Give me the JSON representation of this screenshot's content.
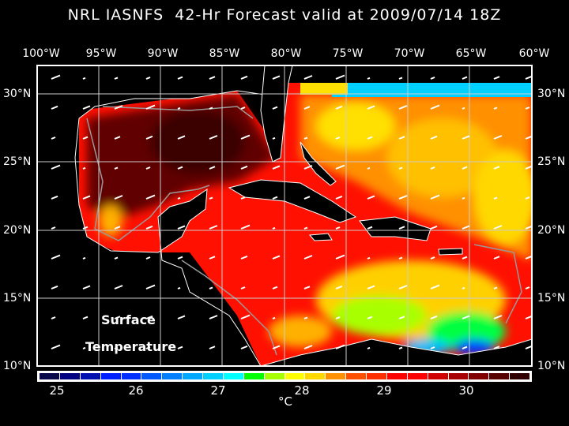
{
  "title": "NRL IASNFS  42-Hr Forecast valid at 2009/07/14 18Z",
  "lon_labels": [
    "100°W",
    "95°W",
    "90°W",
    "85°W",
    "80°W",
    "75°W",
    "70°W",
    "65°W",
    "60°W"
  ],
  "lat_labels": [
    "30°N",
    "25°N",
    "20°N",
    "15°N",
    "10°N"
  ],
  "field_label": {
    "line1": "Surface",
    "line2": "Temperature"
  },
  "colorbar": {
    "unit": "°C",
    "tick_labels": [
      "25",
      "26",
      "27",
      "28",
      "29",
      "30"
    ],
    "colors": [
      "#0a0a4a",
      "#000080",
      "#0010b0",
      "#0020ff",
      "#0030ff",
      "#0058ff",
      "#0080ff",
      "#00a8ff",
      "#00d0ff",
      "#00ffff",
      "#00ff00",
      "#a8ff00",
      "#ffff00",
      "#ffd800",
      "#ff9000",
      "#ff5000",
      "#ff3000",
      "#ff0000",
      "#ff0000",
      "#d00000",
      "#a80000",
      "#800000",
      "#580000",
      "#300000"
    ]
  }
}
